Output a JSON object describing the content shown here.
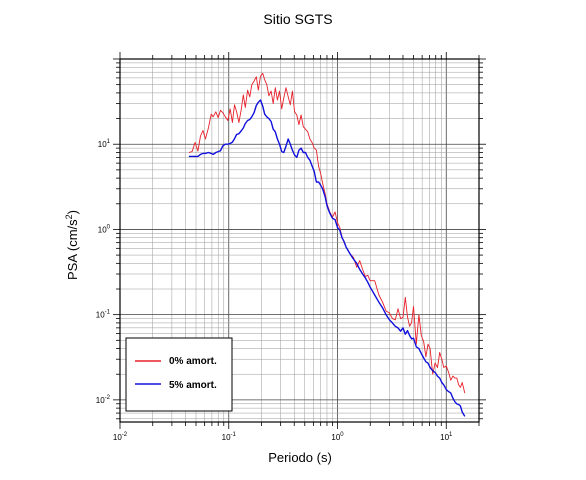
{
  "chart_data": {
    "type": "line",
    "title": "Sitio SGTS",
    "xlabel": "Periodo (s)",
    "ylabel": "PSA (cm/s²)",
    "ylabel_main": "PSA (cm/s",
    "ylabel_sup": "2",
    "ylabel_close": ")",
    "xscale": "log",
    "yscale": "log",
    "xlim": [
      0.01,
      20
    ],
    "ylim": [
      0.0055,
      100
    ],
    "grid": true,
    "legend_position": "bottom-left",
    "x_ticks": [
      {
        "value": 0.01,
        "base": "10",
        "exp": "-2"
      },
      {
        "value": 0.1,
        "base": "10",
        "exp": "-1"
      },
      {
        "value": 1,
        "base": "10",
        "exp": "0"
      },
      {
        "value": 10,
        "base": "10",
        "exp": "1"
      }
    ],
    "y_ticks": [
      {
        "value": 0.01,
        "base": "10",
        "exp": "-2"
      },
      {
        "value": 0.1,
        "base": "10",
        "exp": "-1"
      },
      {
        "value": 1,
        "base": "10",
        "exp": "0"
      },
      {
        "value": 10,
        "base": "10",
        "exp": "1"
      }
    ],
    "series": [
      {
        "name": "0% amort.",
        "color": "#e8202a",
        "x": [
          0.043,
          0.046,
          0.049,
          0.052,
          0.055,
          0.058,
          0.061,
          0.065,
          0.069,
          0.072,
          0.076,
          0.08,
          0.084,
          0.088,
          0.093,
          0.098,
          0.103,
          0.108,
          0.113,
          0.118,
          0.124,
          0.13,
          0.136,
          0.142,
          0.149,
          0.156,
          0.163,
          0.171,
          0.179,
          0.187,
          0.196,
          0.205,
          0.214,
          0.224,
          0.234,
          0.245,
          0.256,
          0.268,
          0.28,
          0.293,
          0.307,
          0.321,
          0.336,
          0.352,
          0.368,
          0.385,
          0.403,
          0.422,
          0.442,
          0.463,
          0.485,
          0.508,
          0.532,
          0.557,
          0.583,
          0.61,
          0.64,
          0.67,
          0.7,
          0.73,
          0.77,
          0.8,
          0.85,
          0.9,
          0.95,
          1.0,
          1.05,
          1.1,
          1.15,
          1.2,
          1.3,
          1.4,
          1.5,
          1.6,
          1.7,
          1.8,
          1.9,
          2.0,
          2.2,
          2.4,
          2.6,
          2.8,
          3.0,
          3.2,
          3.4,
          3.6,
          3.8,
          4.0,
          4.2,
          4.4,
          4.6,
          4.8,
          5.0,
          5.3,
          5.6,
          5.9,
          6.2,
          6.5,
          6.8,
          7.1,
          7.5,
          7.9,
          8.3,
          8.7,
          9.1,
          9.5,
          10.0,
          10.5,
          11.0,
          11.5,
          12.0,
          12.5,
          13.0,
          13.5,
          14.0,
          14.8
        ],
        "y": [
          8,
          8.2,
          10.5,
          8.3,
          12.5,
          14.5,
          11.5,
          15.5,
          22.5,
          21,
          24,
          20.5,
          25,
          23.5,
          21,
          19,
          26,
          18,
          29,
          24,
          18,
          25,
          38,
          27,
          43,
          36,
          50,
          55,
          62,
          43,
          63,
          68,
          57,
          50,
          37,
          42,
          30,
          46,
          33,
          42,
          26,
          35,
          46,
          36,
          29,
          42,
          24,
          22,
          17,
          22,
          16,
          15,
          14,
          11.5,
          10.5,
          9,
          8.5,
          5.5,
          4.5,
          3.5,
          2.6,
          2.0,
          1.6,
          1.4,
          1.6,
          1.2,
          1.05,
          0.82,
          0.7,
          0.62,
          0.52,
          0.47,
          0.36,
          0.43,
          0.34,
          0.28,
          0.29,
          0.25,
          0.25,
          0.17,
          0.14,
          0.11,
          0.105,
          0.09,
          0.087,
          0.117,
          0.09,
          0.093,
          0.16,
          0.094,
          0.073,
          0.081,
          0.125,
          0.045,
          0.1,
          0.057,
          0.048,
          0.032,
          0.045,
          0.04,
          0.02,
          0.027,
          0.024,
          0.036,
          0.03,
          0.024,
          0.025,
          0.021,
          0.017,
          0.019,
          0.018,
          0.018,
          0.015,
          0.014,
          0.016,
          0.012
        ]
      },
      {
        "name": "5% amort.",
        "color": "#1010dd",
        "x": [
          0.043,
          0.046,
          0.049,
          0.052,
          0.055,
          0.058,
          0.061,
          0.065,
          0.069,
          0.072,
          0.076,
          0.08,
          0.084,
          0.088,
          0.093,
          0.098,
          0.103,
          0.108,
          0.113,
          0.118,
          0.124,
          0.13,
          0.136,
          0.142,
          0.149,
          0.156,
          0.163,
          0.171,
          0.179,
          0.187,
          0.196,
          0.205,
          0.214,
          0.224,
          0.234,
          0.245,
          0.256,
          0.268,
          0.28,
          0.293,
          0.307,
          0.321,
          0.336,
          0.352,
          0.368,
          0.385,
          0.403,
          0.422,
          0.442,
          0.463,
          0.485,
          0.508,
          0.532,
          0.557,
          0.583,
          0.61,
          0.64,
          0.67,
          0.7,
          0.73,
          0.77,
          0.8,
          0.85,
          0.9,
          0.95,
          1.0,
          1.05,
          1.1,
          1.15,
          1.2,
          1.3,
          1.4,
          1.5,
          1.6,
          1.7,
          1.8,
          1.9,
          2.0,
          2.2,
          2.4,
          2.6,
          2.8,
          3.0,
          3.2,
          3.4,
          3.6,
          3.8,
          4.0,
          4.2,
          4.4,
          4.6,
          4.8,
          5.0,
          5.3,
          5.6,
          5.9,
          6.2,
          6.5,
          6.8,
          7.1,
          7.5,
          7.9,
          8.3,
          8.7,
          9.1,
          9.5,
          10.0,
          10.5,
          11.0,
          11.5,
          12.0,
          12.5,
          13.0,
          13.5,
          14.0,
          14.8
        ],
        "y": [
          7.2,
          7.2,
          7.2,
          7.2,
          7.6,
          7.8,
          7.8,
          8.0,
          7.8,
          7.6,
          8.0,
          8.2,
          8.4,
          9.5,
          10.0,
          10.0,
          10.2,
          10.6,
          11.6,
          13.0,
          13.3,
          14.3,
          15.5,
          17.5,
          19.0,
          19.5,
          21.0,
          23.5,
          28.5,
          31.0,
          33.0,
          28.0,
          22.5,
          21.0,
          20.0,
          18.5,
          15.0,
          14.0,
          11.5,
          10.0,
          8.2,
          8.0,
          9.5,
          11.5,
          10.0,
          8.5,
          7.5,
          7.0,
          8.5,
          9.0,
          8.0,
          8.0,
          7.0,
          6.5,
          5.6,
          4.8,
          3.6,
          3.6,
          3.3,
          3.0,
          2.4,
          1.9,
          1.55,
          1.35,
          1.3,
          1.05,
          0.98,
          0.8,
          0.72,
          0.62,
          0.52,
          0.45,
          0.4,
          0.34,
          0.3,
          0.27,
          0.24,
          0.21,
          0.17,
          0.14,
          0.12,
          0.1,
          0.087,
          0.08,
          0.073,
          0.07,
          0.064,
          0.07,
          0.059,
          0.065,
          0.057,
          0.052,
          0.053,
          0.042,
          0.04,
          0.035,
          0.031,
          0.028,
          0.027,
          0.024,
          0.022,
          0.021,
          0.019,
          0.018,
          0.016,
          0.015,
          0.0132,
          0.0125,
          0.012,
          0.0105,
          0.0095,
          0.009,
          0.0088,
          0.0085,
          0.0072,
          0.0064
        ]
      }
    ]
  }
}
